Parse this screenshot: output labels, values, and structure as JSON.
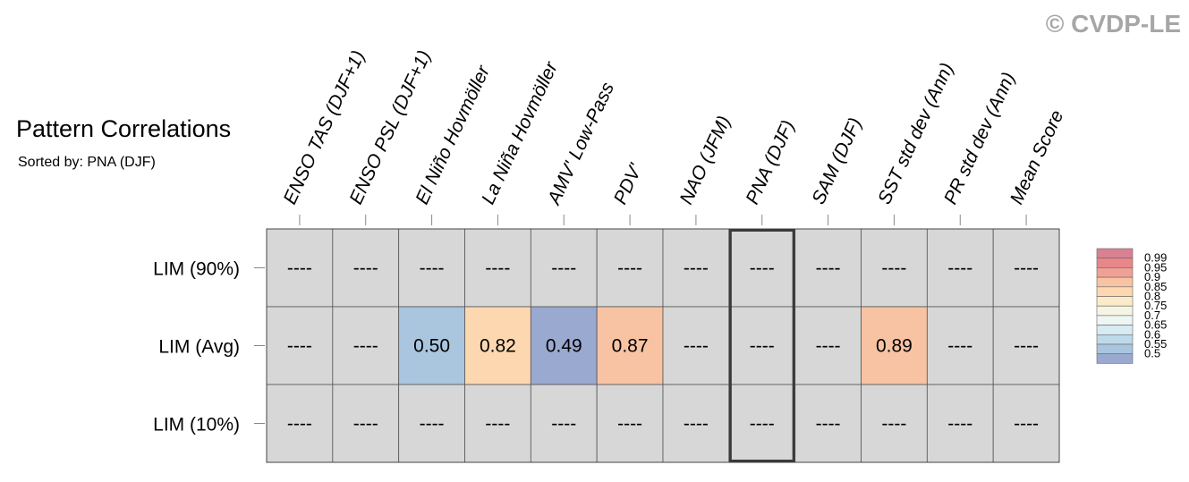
{
  "watermark": "© CVDP-LE",
  "chart_data": {
    "type": "heatmap",
    "title": "Pattern Correlations",
    "subtitle": "Sorted by: PNA (DJF)",
    "columns": [
      "ENSO TAS (DJF+1)",
      "ENSO PSL (DJF+1)",
      "El Niño Hovmöller",
      "La Niña Hovmöller",
      "AMV' Low-Pass",
      "PDV'",
      "NAO (JFM)",
      "PNA (DJF)",
      "SAM (DJF)",
      "SST std dev (Ann)",
      "PR std dev (Ann)",
      "Mean Score"
    ],
    "rows": [
      "LIM (90%)",
      "LIM (Avg)",
      "LIM (10%)"
    ],
    "values": [
      [
        null,
        null,
        null,
        null,
        null,
        null,
        null,
        null,
        null,
        null,
        null,
        null
      ],
      [
        null,
        null,
        0.5,
        0.82,
        0.49,
        0.87,
        null,
        null,
        null,
        0.89,
        null,
        null
      ],
      [
        null,
        null,
        null,
        null,
        null,
        null,
        null,
        null,
        null,
        null,
        null,
        null
      ]
    ],
    "missing_label": "----",
    "highlighted_column": "PNA (DJF)",
    "missing_color": "#d7d7d7",
    "colorbar": {
      "levels": [
        0.5,
        0.55,
        0.6,
        0.65,
        0.7,
        0.75,
        0.8,
        0.85,
        0.9,
        0.95,
        0.99
      ],
      "labels": [
        "0.99",
        "0.95",
        "0.9",
        "0.85",
        "0.8",
        "0.75",
        "0.7",
        "0.65",
        "0.6",
        "0.55",
        "0.5"
      ],
      "colors": [
        "#9aa9d0",
        "#aac5de",
        "#bed9ea",
        "#d6ebf2",
        "#eef6f4",
        "#f6f4e2",
        "#fcebc8",
        "#fcd7b0",
        "#f8c3a3",
        "#f1a095",
        "#e8868a",
        "#d88193"
      ]
    }
  }
}
